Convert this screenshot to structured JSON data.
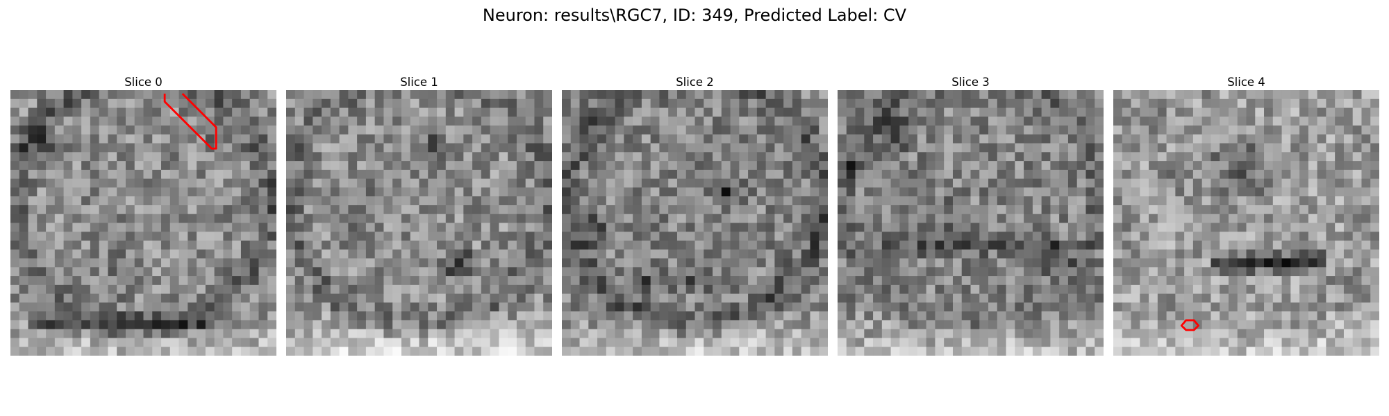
{
  "figure": {
    "title": "Neuron: results\\RGC7, ID: 349, Predicted Label: CV"
  },
  "panels": [
    {
      "title": "Slice 0"
    },
    {
      "title": "Slice 1"
    },
    {
      "title": "Slice 2"
    },
    {
      "title": "Slice 3"
    },
    {
      "title": "Slice 4"
    }
  ],
  "colors": {
    "overlay": "#ff0000",
    "colormap": "gray"
  }
}
